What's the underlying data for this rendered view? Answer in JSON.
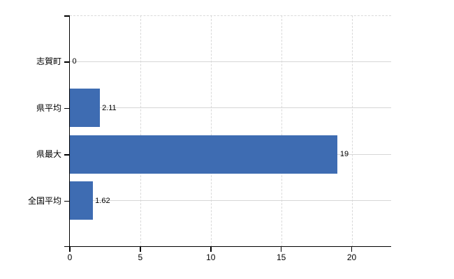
{
  "chart_data": {
    "type": "bar",
    "orientation": "horizontal",
    "title": "",
    "xlabel": "",
    "ylabel": "",
    "categories": [
      "志賀町",
      "県平均",
      "県最大",
      "全国平均"
    ],
    "values": [
      0,
      2.11,
      19,
      1.62
    ],
    "value_labels": [
      "0",
      "2.11",
      "19",
      "1.62"
    ],
    "x_ticks": [
      0,
      5,
      10,
      15,
      20
    ],
    "x_tick_labels": [
      "0",
      "5",
      "10",
      "15",
      "20"
    ],
    "xlim": [
      0,
      22.8
    ],
    "legend": null,
    "grid": {
      "vertical": "dashed",
      "horizontal": "solid at category centers",
      "plot_top_border": "dashed"
    }
  },
  "colors": {
    "bar": "#3e6cb2",
    "axis": "#000000",
    "gridline_solid": "#d6d6d6",
    "gridline_dashed": "#d9d9d9",
    "text": "#000000",
    "background": "#ffffff"
  }
}
